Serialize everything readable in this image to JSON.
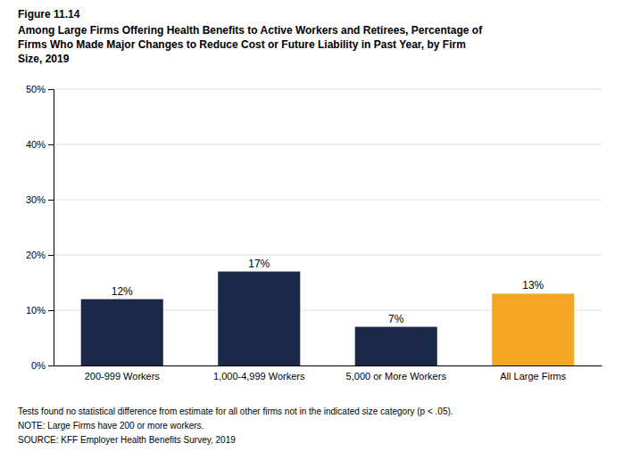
{
  "chart_data": {
    "type": "bar",
    "subtitle": "Figure 11.14",
    "title": [
      "Among Large Firms Offering Health Benefits to Active Workers and Retirees, Percentage of",
      "Firms Who Made Major Changes to Reduce Cost or Future Liability in Past Year, by Firm",
      "Size, 2019"
    ],
    "categories": [
      "200-999 Workers",
      "1,000-4,999 Workers",
      "5,000 or More Workers",
      "All Large Firms"
    ],
    "values": [
      12,
      17,
      7,
      13
    ],
    "value_labels": [
      "12%",
      "17%",
      "7%",
      "13%"
    ],
    "data_labels": true,
    "colors": [
      "#1b2a4a",
      "#1b2a4a",
      "#1b2a4a",
      "#f5a623"
    ],
    "ylim": [
      0,
      50
    ],
    "yticks": [
      {
        "value": 0,
        "label": "0%"
      },
      {
        "value": 10,
        "label": "10%"
      },
      {
        "value": 20,
        "label": "20%"
      },
      {
        "value": 30,
        "label": "30%"
      },
      {
        "value": 40,
        "label": "40%"
      },
      {
        "value": 50,
        "label": "50%"
      }
    ],
    "grid": true,
    "annotations": [
      "Tests found no statistical difference from estimate for all other firms not in the indicated size category (p < .05).",
      "NOTE: Large Firms have 200 or more workers.",
      "SOURCE: KFF Employer Health Benefits Survey, 2019"
    ]
  }
}
